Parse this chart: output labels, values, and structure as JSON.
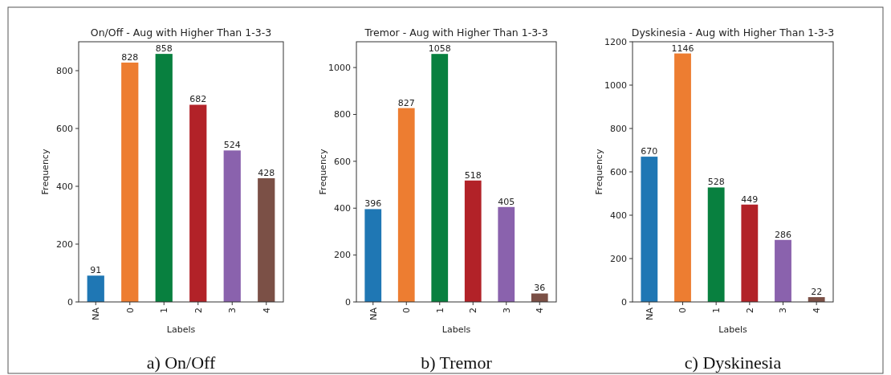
{
  "chart_data": [
    {
      "type": "bar",
      "title": "On/Off - Aug with Higher Than 1-3-3",
      "xlabel": "Labels",
      "ylabel": "Frequency",
      "categories": [
        "NA",
        "0",
        "1",
        "2",
        "3",
        "4"
      ],
      "values": [
        91,
        828,
        858,
        682,
        524,
        428
      ],
      "colors": [
        "#1f77b4",
        "#ed7d31",
        "#08803f",
        "#b22228",
        "#8a62ad",
        "#7b5046"
      ],
      "ylim": [
        0,
        900
      ],
      "yticks": [
        0,
        200,
        400,
        600,
        800
      ],
      "data_labels": true,
      "annotations": [
        "a) On/Off"
      ]
    },
    {
      "type": "bar",
      "title": "Tremor - Aug with Higher Than 1-3-3",
      "xlabel": "Labels",
      "ylabel": "Frequency",
      "categories": [
        "NA",
        "0",
        "1",
        "2",
        "3",
        "4"
      ],
      "values": [
        396,
        827,
        1058,
        518,
        405,
        36
      ],
      "colors": [
        "#1f77b4",
        "#ed7d31",
        "#08803f",
        "#b22228",
        "#8a62ad",
        "#7b5046"
      ],
      "ylim": [
        0,
        1110
      ],
      "yticks": [
        0,
        200,
        400,
        600,
        800,
        1000
      ],
      "data_labels": true,
      "annotations": [
        "b) Tremor"
      ]
    },
    {
      "type": "bar",
      "title": "Dyskinesia - Aug with Higher Than 1-3-3",
      "xlabel": "Labels",
      "ylabel": "Frequency",
      "categories": [
        "NA",
        "0",
        "1",
        "2",
        "3",
        "4"
      ],
      "values": [
        670,
        1146,
        528,
        449,
        286,
        22
      ],
      "colors": [
        "#1f77b4",
        "#ed7d31",
        "#08803f",
        "#b22228",
        "#8a62ad",
        "#7b5046"
      ],
      "ylim": [
        0,
        1200
      ],
      "yticks": [
        0,
        200,
        400,
        600,
        800,
        1000,
        1200
      ],
      "data_labels": true,
      "annotations": [
        "c) Dyskinesia"
      ]
    }
  ]
}
